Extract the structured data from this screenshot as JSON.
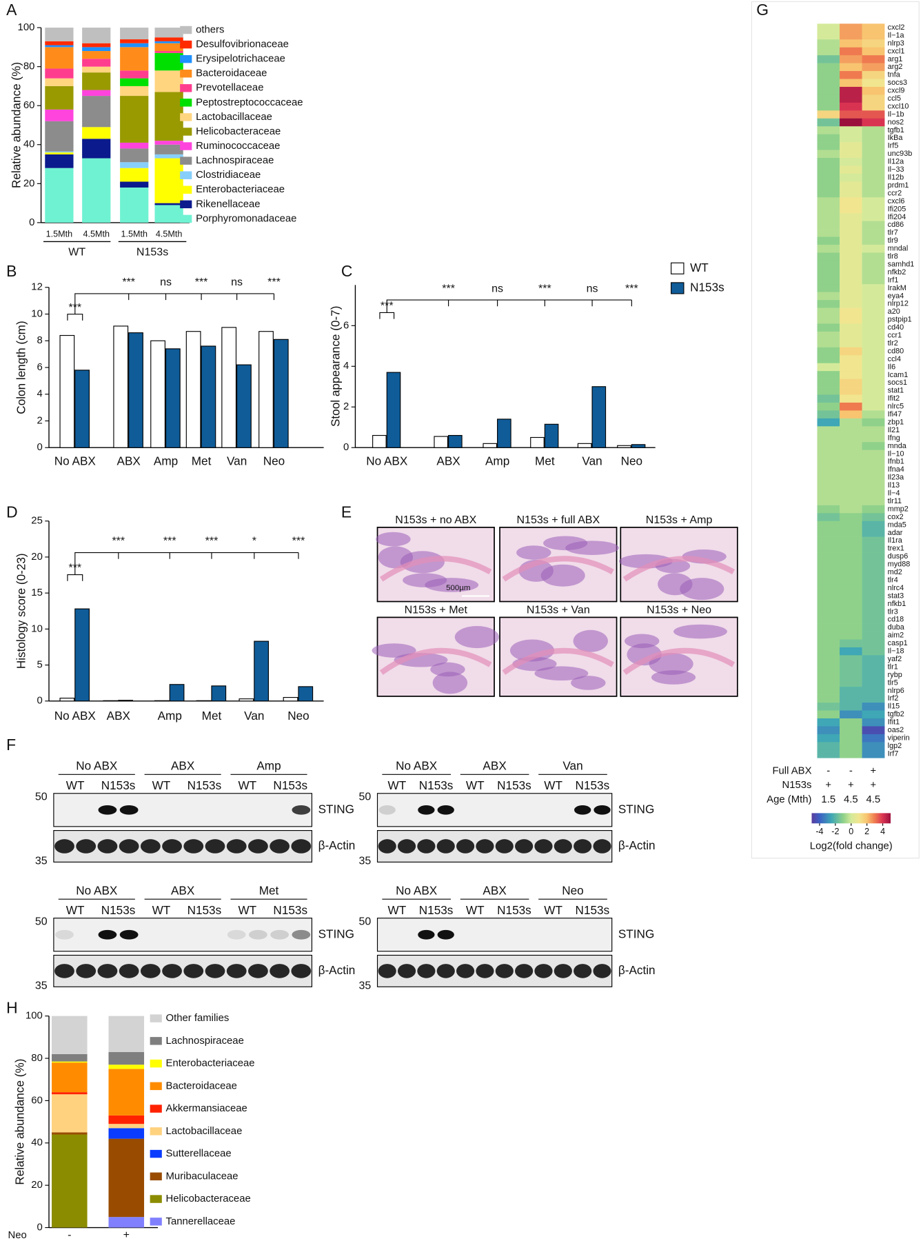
{
  "panel_labels": [
    "A",
    "B",
    "C",
    "D",
    "E",
    "F",
    "G",
    "H"
  ],
  "chart_data": [
    {
      "type": "stacked_bar",
      "ylabel": "Relative abundance (%)",
      "categories": [
        "1.5Mth",
        "4.5Mth",
        "1.5Mth",
        "4.5Mth"
      ],
      "groups": [
        "WT",
        "N153s"
      ],
      "ylim": [
        0,
        100
      ],
      "yticks": [
        0,
        20,
        40,
        60,
        80,
        100
      ],
      "series": [
        {
          "name": "Porphyromonadaceae",
          "color": "#6ff2d2",
          "values": [
            28,
            33,
            18,
            9
          ]
        },
        {
          "name": "Rikenellaceae",
          "color": "#0b1a8c",
          "values": [
            7,
            10,
            3,
            1
          ]
        },
        {
          "name": "Enterobacteriaceae",
          "color": "#ffff00",
          "values": [
            1,
            6,
            7,
            23
          ]
        },
        {
          "name": "Clostridiaceae",
          "color": "#87cefa",
          "values": [
            0.5,
            0,
            3,
            2
          ]
        },
        {
          "name": "Lachnospiraceae",
          "color": "#8c8c8c",
          "values": [
            15.5,
            16,
            7,
            5
          ]
        },
        {
          "name": "Ruminococcaceae",
          "color": "#ff44dd",
          "values": [
            6,
            3,
            3,
            2
          ]
        },
        {
          "name": "Helicobacteraceae",
          "color": "#999900",
          "values": [
            12,
            9,
            24,
            25
          ]
        },
        {
          "name": "Lactobacillaceae",
          "color": "#ffd580",
          "values": [
            4,
            3,
            5,
            11
          ]
        },
        {
          "name": "Peptostreptococcaceae",
          "color": "#00e000",
          "values": [
            0,
            0,
            4,
            9
          ]
        },
        {
          "name": "Prevotellaceae",
          "color": "#ff3d8f",
          "values": [
            5,
            4,
            4,
            1
          ]
        },
        {
          "name": "Bacteroidaceae",
          "color": "#ff8c1a",
          "values": [
            11,
            4,
            12,
            4
          ]
        },
        {
          "name": "Erysipelotrichaceae",
          "color": "#1e90ff",
          "values": [
            1,
            2,
            2,
            1
          ]
        },
        {
          "name": "Desulfovibrionaceae",
          "color": "#ff2a00",
          "values": [
            2,
            2,
            2,
            2
          ]
        },
        {
          "name": "others",
          "color": "#bfbfbf",
          "values": [
            7,
            8,
            6,
            5
          ]
        }
      ]
    },
    {
      "type": "grouped_bar",
      "ylabel": "Colon length (cm)",
      "categories": [
        "No ABX",
        "ABX",
        "Amp",
        "Met",
        "Van",
        "Neo"
      ],
      "ylim": [
        0,
        12
      ],
      "yticks": [
        0,
        2,
        4,
        6,
        8,
        10,
        12
      ],
      "series": [
        {
          "color": "#ffffff",
          "values": [
            8.4,
            9.1,
            8.0,
            8.7,
            9.0,
            8.7
          ]
        },
        {
          "color": "#0f5c99",
          "values": [
            5.8,
            8.6,
            7.4,
            7.6,
            6.2,
            8.1
          ]
        }
      ],
      "annotations": [
        "***",
        "***",
        "ns",
        "***",
        "ns",
        "***"
      ]
    },
    {
      "type": "grouped_bar",
      "ylabel": "Stool appearance  (0-7)",
      "categories": [
        "No ABX",
        "ABX",
        "Amp",
        "Met",
        "Van",
        "Neo"
      ],
      "ylim": [
        0,
        8
      ],
      "yticks": [
        0,
        2,
        4,
        6
      ],
      "series": [
        {
          "name": "WT",
          "color": "#ffffff",
          "values": [
            0.6,
            0.55,
            0.2,
            0.5,
            0.2,
            0.1
          ]
        },
        {
          "name": "N153s",
          "color": "#0f5c99",
          "values": [
            3.7,
            0.6,
            1.4,
            1.15,
            3.0,
            0.15
          ]
        }
      ],
      "annotations": [
        "***",
        "***",
        "ns",
        "***",
        "ns",
        "***"
      ]
    },
    {
      "type": "grouped_bar",
      "ylabel": "Histology score (0-23)",
      "categories": [
        "No ABX",
        "ABX",
        "Amp",
        "Met",
        "Van",
        "Neo"
      ],
      "ylim": [
        0,
        25
      ],
      "yticks": [
        0,
        5,
        10,
        15,
        20,
        25
      ],
      "series": [
        {
          "color": "#ffffff",
          "values": [
            0.4,
            0.05,
            0.05,
            0.05,
            0.3,
            0.5
          ]
        },
        {
          "color": "#0f5c99",
          "values": [
            12.8,
            0.1,
            2.3,
            2.1,
            8.3,
            2.0
          ]
        }
      ],
      "annotations": [
        "***",
        "***",
        "***",
        "***",
        "*",
        "***"
      ]
    },
    {
      "type": "stacked_bar",
      "ylabel": "Relative abundance (%)",
      "xlabel": "Neo",
      "categories": [
        "-",
        "+"
      ],
      "ylim": [
        0,
        100
      ],
      "yticks": [
        0,
        20,
        40,
        60,
        80,
        100
      ],
      "series": [
        {
          "name": "Tannerellaceae",
          "color": "#8080ff",
          "values": [
            0,
            5
          ]
        },
        {
          "name": "Helicobacteraceae",
          "color": "#8c8c00",
          "values": [
            44,
            0
          ]
        },
        {
          "name": "Muribaculaceae",
          "color": "#994c00",
          "values": [
            1,
            37
          ]
        },
        {
          "name": "Sutterellaceae",
          "color": "#0a3cff",
          "values": [
            0,
            5
          ]
        },
        {
          "name": "Lactobacillaceae",
          "color": "#ffd27f",
          "values": [
            18,
            2
          ]
        },
        {
          "name": "Akkermansiaceae",
          "color": "#ff2200",
          "values": [
            1,
            4
          ]
        },
        {
          "name": "Bacteroidaceae",
          "color": "#ff8c00",
          "values": [
            14,
            22
          ]
        },
        {
          "name": "Enterobacteriaceae",
          "color": "#ffff00",
          "values": [
            0.5,
            2
          ]
        },
        {
          "name": "Lachnospiraceae",
          "color": "#7f7f7f",
          "values": [
            3.5,
            6
          ]
        },
        {
          "name": "Other families",
          "color": "#d3d3d3",
          "values": [
            18,
            17
          ]
        }
      ]
    },
    {
      "type": "heatmap",
      "rows": [
        "cxcl2",
        "Il−1a",
        "nlrp3",
        "cxcl1",
        "arg1",
        "arg2",
        "tnfa",
        "socs3",
        "cxcl9",
        "ccl5",
        "cxcl10",
        "Il−1b",
        "nos2",
        "tgfb1",
        "IkBa",
        "Irf5",
        "unc93b",
        "Il12a",
        "Il−33",
        "Il12b",
        "prdm1",
        "ccr2",
        "cxcl6",
        "Ifi205",
        "Ifi204",
        "cd86",
        "tlr7",
        "tlr9",
        "mndal",
        "tlr8",
        "samhd1",
        "nfkb2",
        "Irf1",
        "IrakM",
        "eya4",
        "nlrp12",
        "a20",
        "pstpip1",
        "cd40",
        "ccr1",
        "tlr2",
        "cd80",
        "ccl4",
        "Il6",
        "Icam1",
        "socs1",
        "stat1",
        "Ifit2",
        "nlrc5",
        "Ifi47",
        "zbp1",
        "Il21",
        "Ifng",
        "mnda",
        "Il−10",
        "Ifnb1",
        "Ifna4",
        "Il23a",
        "Il13",
        "Il−4",
        "tlr11",
        "mmp2",
        "cox2",
        "mda5",
        "adar",
        "Il1ra",
        "trex1",
        "dusp6",
        "myd88",
        "md2",
        "tlr4",
        "nlrc4",
        "stat3",
        "nfkb1",
        "tlr3",
        "cd18",
        "duba",
        "aim2",
        "casp1",
        "Il−18",
        "yaf2",
        "tlr1",
        "rybp",
        "tlr5",
        "nlrp6",
        "Irf2",
        "Il15",
        "tgfb2",
        "Ifit1",
        "oas2",
        "viperin",
        "lgp2",
        "Irf7"
      ],
      "column_annotations": [
        {
          "name": "Full ABX",
          "labels": [
            "-",
            "-",
            "+"
          ]
        },
        {
          "name": "N153s",
          "labels": [
            "+",
            "+",
            "+"
          ]
        },
        {
          "name": "Age (Mth)",
          "labels": [
            "1.5",
            "4.5",
            "4.5"
          ]
        }
      ],
      "values": [
        [
          0,
          2.5,
          2
        ],
        [
          0,
          2.5,
          2
        ],
        [
          -0.5,
          2,
          1.5
        ],
        [
          -0.5,
          3,
          2
        ],
        [
          -1.5,
          2.5,
          3
        ],
        [
          -1,
          2,
          2.5
        ],
        [
          -1,
          3,
          1.5
        ],
        [
          -1,
          2,
          1
        ],
        [
          -1,
          4.5,
          2
        ],
        [
          -1,
          4.5,
          1.5
        ],
        [
          -1,
          4,
          1.5
        ],
        [
          1.5,
          3.5,
          3.5
        ],
        [
          -1.5,
          5,
          4
        ],
        [
          -0.5,
          0,
          -0.5
        ],
        [
          -1,
          0,
          -0.5
        ],
        [
          -1,
          0.5,
          -0.5
        ],
        [
          -0.5,
          0.5,
          -0.5
        ],
        [
          -1,
          0,
          -0.5
        ],
        [
          -1,
          0.5,
          -0.5
        ],
        [
          -1,
          0,
          -0.5
        ],
        [
          -1,
          0.5,
          -0.5
        ],
        [
          -1,
          0.5,
          -0.5
        ],
        [
          -0.5,
          1,
          0
        ],
        [
          -0.5,
          1,
          0
        ],
        [
          -0.5,
          0.5,
          0
        ],
        [
          -0.5,
          0.5,
          -0.5
        ],
        [
          -0.5,
          0.5,
          -0.5
        ],
        [
          -1,
          0.5,
          -0.5
        ],
        [
          -0.5,
          0.5,
          0
        ],
        [
          -1,
          0.5,
          -0.5
        ],
        [
          -1,
          0.5,
          -0.5
        ],
        [
          -1,
          0.5,
          -0.5
        ],
        [
          -1,
          0.5,
          -0.5
        ],
        [
          -1,
          0.5,
          0
        ],
        [
          -0.5,
          0.5,
          0
        ],
        [
          -1,
          0.5,
          0
        ],
        [
          -0.5,
          1,
          0
        ],
        [
          -0.5,
          1,
          0
        ],
        [
          -1,
          0.5,
          0
        ],
        [
          -0.5,
          0.5,
          0
        ],
        [
          -0.5,
          0.5,
          0
        ],
        [
          -1,
          1.5,
          0
        ],
        [
          -1,
          1,
          0
        ],
        [
          0,
          1,
          0
        ],
        [
          -1,
          1,
          0
        ],
        [
          -1,
          1.5,
          0
        ],
        [
          -1,
          1.5,
          0
        ],
        [
          -1.5,
          1,
          0
        ],
        [
          -1,
          3,
          0
        ],
        [
          -1.5,
          2,
          -0.5
        ],
        [
          -2.5,
          -0.5,
          -1
        ],
        [
          -0.5,
          -0.5,
          -0.5
        ],
        [
          -0.5,
          -0.5,
          -0.5
        ],
        [
          -0.5,
          -0.5,
          -1
        ],
        [
          -0.5,
          -0.5,
          -0.5
        ],
        [
          -0.5,
          -0.5,
          -0.5
        ],
        [
          -0.5,
          -0.5,
          -0.5
        ],
        [
          -0.5,
          -0.5,
          -0.5
        ],
        [
          -0.5,
          -0.5,
          -0.5
        ],
        [
          -0.5,
          -0.5,
          -0.5
        ],
        [
          -0.5,
          -0.5,
          -0.5
        ],
        [
          -1,
          -0.5,
          -1
        ],
        [
          -1.5,
          -1,
          -1.5
        ],
        [
          -1,
          -1,
          -2
        ],
        [
          -1,
          -1,
          -2
        ],
        [
          -1,
          -1,
          -1.5
        ],
        [
          -1,
          -1,
          -1.5
        ],
        [
          -1,
          -1,
          -1.5
        ],
        [
          -1,
          -1,
          -1.5
        ],
        [
          -1,
          -1,
          -1.5
        ],
        [
          -1,
          -1,
          -1.5
        ],
        [
          -1,
          -1,
          -1.5
        ],
        [
          -1,
          -1,
          -1.5
        ],
        [
          -1,
          -1,
          -1.5
        ],
        [
          -1,
          -1,
          -1.5
        ],
        [
          -1,
          -1,
          -1.5
        ],
        [
          -1,
          -1,
          -1.5
        ],
        [
          -1,
          -1,
          -1.5
        ],
        [
          -1,
          -1.5,
          -1.5
        ],
        [
          -1,
          -2.5,
          -1.5
        ],
        [
          -1,
          -1.5,
          -2
        ],
        [
          -1,
          -1.5,
          -2
        ],
        [
          -1,
          -1.5,
          -2
        ],
        [
          -1,
          -1.5,
          -2
        ],
        [
          -1,
          -2,
          -2
        ],
        [
          -1,
          -2,
          -2
        ],
        [
          -1.5,
          -2,
          -3
        ],
        [
          -1,
          -3,
          -2.5
        ],
        [
          -2.5,
          -1,
          -3
        ],
        [
          -3,
          -1,
          -4.5
        ],
        [
          -2.5,
          -1,
          -3.5
        ],
        [
          -2,
          -1,
          -3
        ],
        [
          -2,
          -1,
          -3
        ]
      ],
      "clim": [
        -5,
        5
      ],
      "cticks": [
        -4,
        -2,
        0,
        2,
        4
      ],
      "colorbar_label": "Log2(fold change)"
    }
  ],
  "histology": {
    "titles": [
      "N153s + no ABX",
      "N153s + full ABX",
      "N153s + Amp",
      "N153s + Met",
      "N153s + Van",
      "N153s + Neo"
    ],
    "scale_bar": "500µm"
  },
  "blots": [
    {
      "groups": [
        "No ABX",
        "ABX",
        "Amp"
      ],
      "lanes": [
        "WT",
        "N153s",
        "WT",
        "N153s",
        "WT",
        "N153s"
      ],
      "markers": [
        50,
        35
      ],
      "bands": [
        "STING",
        "β-Actin"
      ]
    },
    {
      "groups": [
        "No ABX",
        "ABX",
        "Van"
      ],
      "lanes": [
        "WT",
        "N153s",
        "WT",
        "N153s",
        "WT",
        "N153s"
      ],
      "markers": [
        50,
        35
      ],
      "bands": [
        "STING",
        "β-Actin"
      ]
    },
    {
      "groups": [
        "No ABX",
        "ABX",
        "Met"
      ],
      "lanes": [
        "WT",
        "N153s",
        "WT",
        "N153s",
        "WT",
        "N153s"
      ],
      "markers": [
        50,
        35
      ],
      "bands": [
        "STING",
        "β-Actin"
      ]
    },
    {
      "groups": [
        "No ABX",
        "ABX",
        "Neo"
      ],
      "lanes": [
        "WT",
        "N153s",
        "WT",
        "N153s",
        "WT",
        "N153s"
      ],
      "markers": [
        50,
        35
      ],
      "bands": [
        "STING",
        "β-Actin"
      ]
    }
  ]
}
